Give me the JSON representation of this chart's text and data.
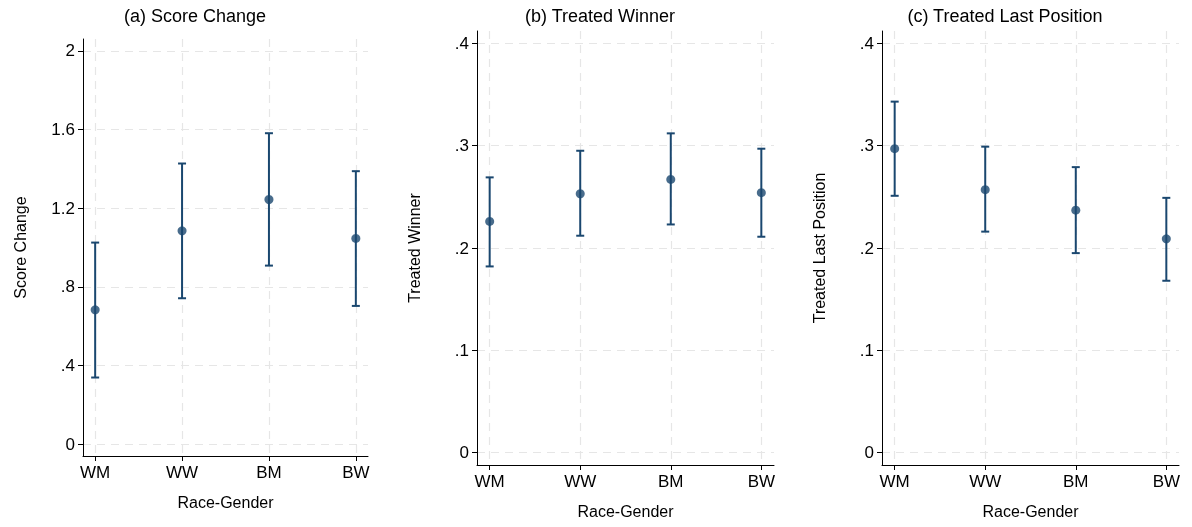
{
  "chart_data": [
    {
      "type": "scatter",
      "title": "(a) Score Change",
      "xlabel": "Race-Gender",
      "ylabel": "Score Change",
      "categories": [
        "WM",
        "WW",
        "BM",
        "BW"
      ],
      "color": "#1a476f",
      "marker": "circle",
      "grid": true,
      "values": [
        0.683,
        1.085,
        1.244,
        1.046
      ],
      "errors": [
        [
          0.339,
          1.025
        ],
        [
          0.742,
          1.427
        ],
        [
          0.908,
          1.581
        ],
        [
          0.703,
          1.388
        ]
      ],
      "ylim": [
        -0.06,
        2.06
      ],
      "yticks": [
        0,
        {
          "value": 0.4,
          "label": ".4"
        },
        {
          "value": 0.8,
          "label": ".8"
        },
        1.2,
        1.6,
        2
      ]
    },
    {
      "type": "scatter",
      "title": "(b) Treated Winner",
      "xlabel": "Race-Gender",
      "ylabel": "Treated Winner",
      "categories": [
        "WM",
        "WW",
        "BM",
        "BW"
      ],
      "color": "#1a476f",
      "marker": "circle",
      "grid": true,
      "values": [
        0.226,
        0.253,
        0.267,
        0.254
      ],
      "errors": [
        [
          0.182,
          0.269
        ],
        [
          0.212,
          0.295
        ],
        [
          0.223,
          0.312
        ],
        [
          0.211,
          0.297
        ]
      ],
      "ylim": [
        -0.012,
        0.412
      ],
      "yticks": [
        0,
        {
          "value": 0.1,
          "label": ".1"
        },
        {
          "value": 0.2,
          "label": ".2"
        },
        {
          "value": 0.3,
          "label": ".3"
        },
        {
          "value": 0.4,
          "label": ".4"
        }
      ]
    },
    {
      "type": "scatter",
      "title": "(c) Treated Last Position",
      "xlabel": "Race-Gender",
      "ylabel": "Treated Last Position",
      "categories": [
        "WM",
        "WW",
        "BM",
        "BW"
      ],
      "color": "#1a476f",
      "marker": "circle",
      "grid": true,
      "values": [
        0.297,
        0.257,
        0.237,
        0.209
      ],
      "errors": [
        [
          0.251,
          0.343
        ],
        [
          0.216,
          0.299
        ],
        [
          0.195,
          0.279
        ],
        [
          0.168,
          0.249
        ]
      ],
      "ylim": [
        -0.012,
        0.412
      ],
      "yticks": [
        0,
        {
          "value": 0.1,
          "label": ".1"
        },
        {
          "value": 0.2,
          "label": ".2"
        },
        {
          "value": 0.3,
          "label": ".3"
        },
        {
          "value": 0.4,
          "label": ".4"
        }
      ]
    }
  ]
}
